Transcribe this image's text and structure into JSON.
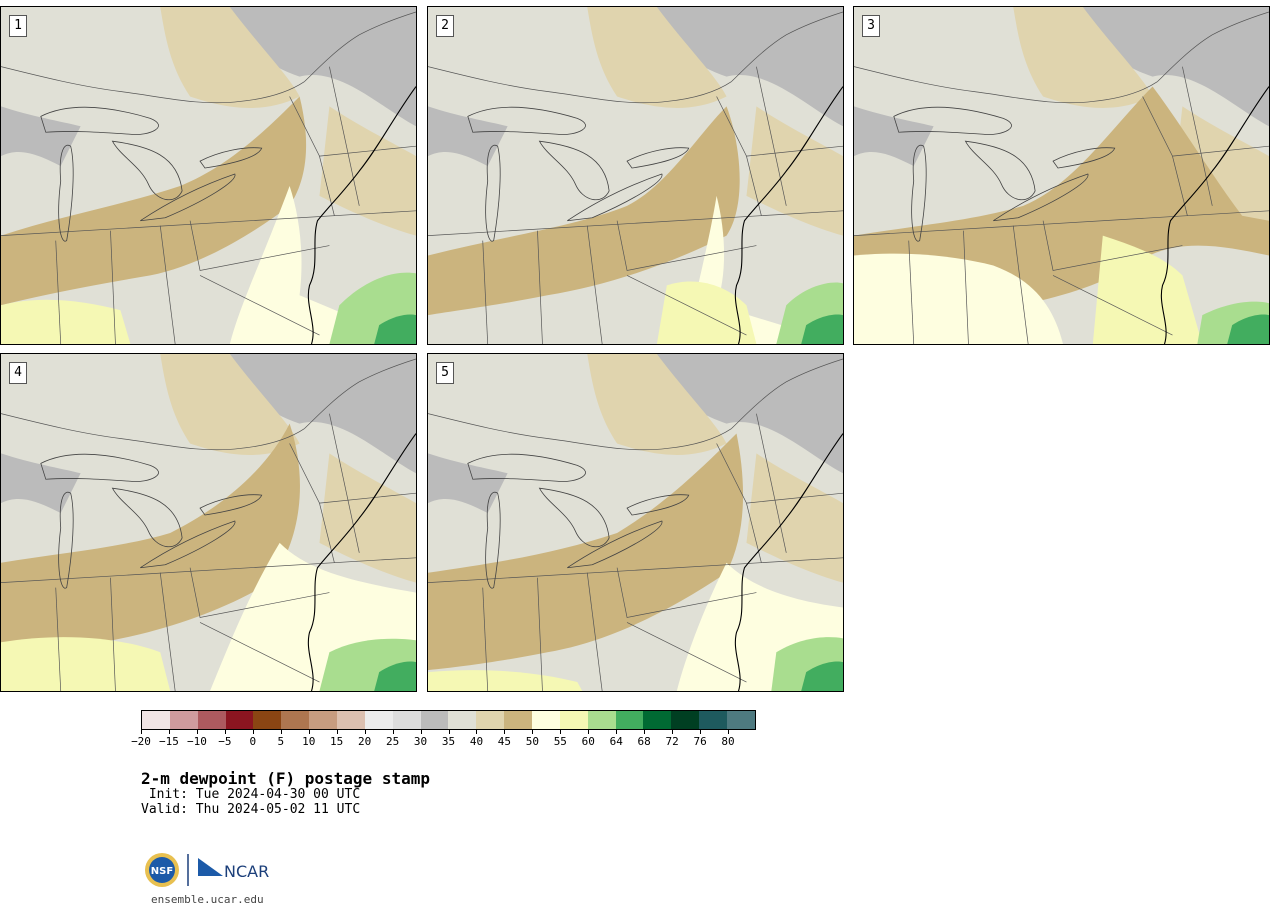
{
  "title": "2-m dewpoint (F) postage stamp",
  "init_text": " Init: Tue 2024-04-30 00 UTC",
  "valid_text": "Valid: Thu 2024-05-02 11 UTC",
  "site_url": "ensemble.ucar.edu",
  "logos": {
    "nsf": "NSF",
    "ncar": "NCAR"
  },
  "panels": [
    {
      "label": "1"
    },
    {
      "label": "2"
    },
    {
      "label": "3"
    },
    {
      "label": "4"
    },
    {
      "label": "5"
    }
  ],
  "colorbar": {
    "colors": [
      "#f0e4e4",
      "#cf9b9e",
      "#ad5a5f",
      "#8b1520",
      "#8a4513",
      "#ad7650",
      "#c79c80",
      "#dcc0b0",
      "#ececec",
      "#dddddd",
      "#bbbbbb",
      "#e0e0d6",
      "#e0d4ae",
      "#cbb47e",
      "#fefee0",
      "#f5f8b4",
      "#a9dd8f",
      "#42ad5f",
      "#006a33",
      "#003f22",
      "#1e5a5e",
      "#4e7a80"
    ],
    "tick_labels": [
      "−20",
      "−15",
      "−10",
      "−5",
      "0",
      "5",
      "10",
      "15",
      "20",
      "25",
      "30",
      "35",
      "40",
      "45",
      "50",
      "55",
      "60",
      "64",
      "68",
      "72",
      "76",
      "80"
    ]
  },
  "legend_colors": {
    "gray": "#bbbbbb",
    "light": "#e0e0d6",
    "tan40": "#e0d4ae",
    "tan45": "#cbb47e",
    "y50": "#fefee0",
    "y55": "#f5f8b4",
    "g60": "#a9dd8f",
    "g64": "#42ad5f"
  }
}
